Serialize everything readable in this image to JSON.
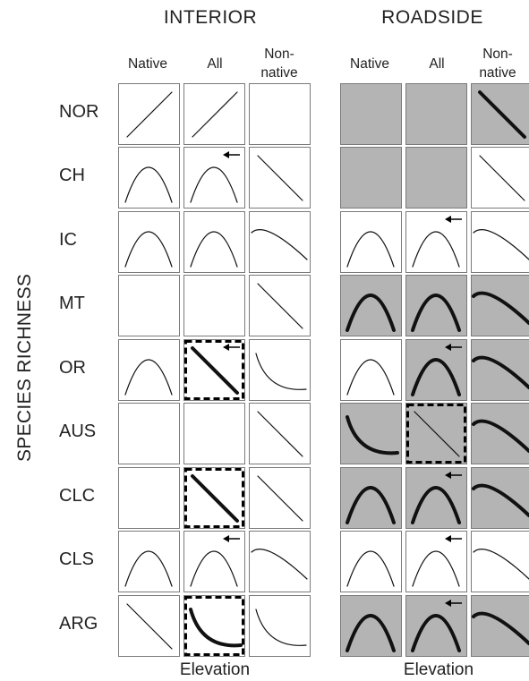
{
  "sections": [
    {
      "title": "INTERIOR",
      "columns": [
        "Native",
        "All",
        "Non-\nnative"
      ],
      "xlabel": "Elevation"
    },
    {
      "title": "ROADSIDE",
      "columns": [
        "Native",
        "All",
        "Non-\nnative"
      ],
      "xlabel": "Elevation"
    }
  ],
  "ylabel": "SPECIES RICHNESS",
  "rows": [
    "NOR",
    "CH",
    "IC",
    "MT",
    "OR",
    "AUS",
    "CLC",
    "CLS",
    "ARG"
  ],
  "colors": {
    "shaded": "#b4b4b4",
    "plain": "#ffffff",
    "border": "#7a7a7a",
    "line": "#111111"
  },
  "chart_data": {
    "type": "table",
    "rows": [
      "NOR",
      "CH",
      "IC",
      "MT",
      "OR",
      "AUS",
      "CLC",
      "CLS",
      "ARG"
    ],
    "columns": [
      "INTERIOR Native",
      "INTERIOR All",
      "INTERIOR Non-native",
      "ROADSIDE Native",
      "ROADSIDE All",
      "ROADSIDE Non-native"
    ],
    "cells": [
      [
        {
          "shape": "increasing"
        },
        {
          "shape": "increasing"
        },
        {
          "shape": "none"
        },
        {
          "shape": "none",
          "shaded": true
        },
        {
          "shape": "none",
          "shaded": true
        },
        {
          "shape": "decreasing",
          "shaded": true,
          "bold": true
        }
      ],
      [
        {
          "shape": "hump"
        },
        {
          "shape": "hump",
          "arrow": true
        },
        {
          "shape": "decreasing"
        },
        {
          "shape": "none",
          "shaded": true
        },
        {
          "shape": "none",
          "shaded": true
        },
        {
          "shape": "decreasing"
        }
      ],
      [
        {
          "shape": "hump"
        },
        {
          "shape": "hump"
        },
        {
          "shape": "hump-decline"
        },
        {
          "shape": "hump"
        },
        {
          "shape": "hump",
          "arrow": true
        },
        {
          "shape": "hump-decline"
        }
      ],
      [
        {
          "shape": "none"
        },
        {
          "shape": "none"
        },
        {
          "shape": "decreasing"
        },
        {
          "shape": "hump",
          "shaded": true,
          "bold": true
        },
        {
          "shape": "hump",
          "shaded": true,
          "bold": true
        },
        {
          "shape": "hump-decline",
          "shaded": true,
          "bold": true
        }
      ],
      [
        {
          "shape": "hump"
        },
        {
          "shape": "decreasing",
          "bold": true,
          "dashed": true,
          "arrow": true
        },
        {
          "shape": "u"
        },
        {
          "shape": "hump"
        },
        {
          "shape": "hump",
          "shaded": true,
          "bold": true,
          "arrow": true
        },
        {
          "shape": "hump-decline",
          "shaded": true,
          "bold": true
        }
      ],
      [
        {
          "shape": "none"
        },
        {
          "shape": "none"
        },
        {
          "shape": "decreasing"
        },
        {
          "shape": "u",
          "shaded": true,
          "bold": true
        },
        {
          "shape": "decreasing",
          "shaded": true,
          "dashed": true
        },
        {
          "shape": "hump-decline",
          "shaded": true,
          "bold": true
        }
      ],
      [
        {
          "shape": "none"
        },
        {
          "shape": "decreasing",
          "bold": true,
          "dashed": true
        },
        {
          "shape": "decreasing"
        },
        {
          "shape": "hump",
          "shaded": true,
          "bold": true
        },
        {
          "shape": "hump",
          "shaded": true,
          "bold": true,
          "arrow": true
        },
        {
          "shape": "hump-decline",
          "shaded": true,
          "bold": true
        }
      ],
      [
        {
          "shape": "hump"
        },
        {
          "shape": "hump",
          "arrow": true
        },
        {
          "shape": "hump-decline"
        },
        {
          "shape": "hump"
        },
        {
          "shape": "hump",
          "arrow": true
        },
        {
          "shape": "hump-decline"
        }
      ],
      [
        {
          "shape": "decreasing"
        },
        {
          "shape": "u",
          "bold": true,
          "dashed": true
        },
        {
          "shape": "u"
        },
        {
          "shape": "hump",
          "shaded": true,
          "bold": true
        },
        {
          "shape": "hump",
          "shaded": true,
          "bold": true,
          "arrow": true
        },
        {
          "shape": "hump-decline",
          "shaded": true,
          "bold": true
        }
      ]
    ]
  }
}
